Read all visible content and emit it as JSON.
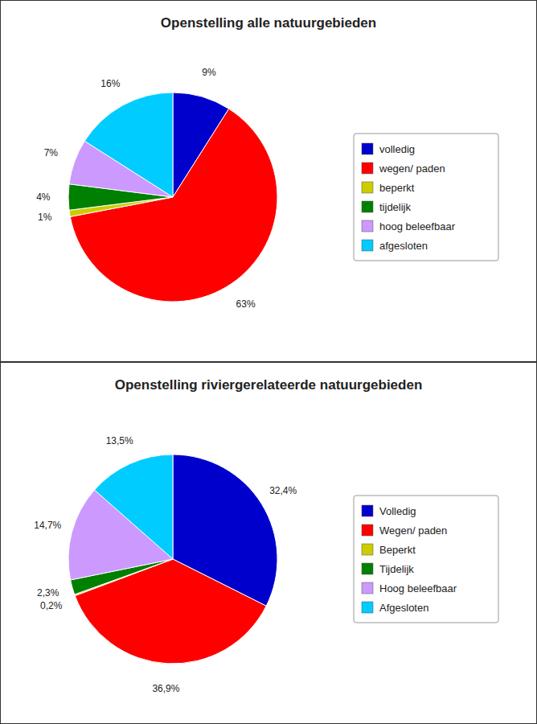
{
  "chart_data": [
    {
      "type": "pie",
      "title": "Openstelling alle natuurgebieden",
      "categories": [
        "volledig",
        "wegen/ paden",
        "beperkt",
        "tijdelijk",
        "hoog beleefbaar",
        "afgesloten"
      ],
      "values": [
        9,
        63,
        1,
        4,
        7,
        16
      ],
      "value_labels": [
        "9%",
        "63%",
        "1%",
        "4%",
        "7%",
        "16%"
      ],
      "colors": [
        "#0000CC",
        "#FF0000",
        "#CCCC00",
        "#008000",
        "#CC99FF",
        "#00CCFF"
      ],
      "data_labels": true,
      "legend": "right"
    },
    {
      "type": "pie",
      "title": "Openstelling riviergerelateerde natuurgebieden",
      "categories": [
        "Volledig",
        "Wegen/ paden",
        "Beperkt",
        "Tijdelijk",
        "Hoog beleefbaar",
        "Afgesloten"
      ],
      "values": [
        32.4,
        36.9,
        0.2,
        2.3,
        14.7,
        13.5
      ],
      "value_labels": [
        "32,4%",
        "36,9%",
        "0,2%",
        "2,3%",
        "14,7%",
        "13,5%"
      ],
      "colors": [
        "#0000CC",
        "#FF0000",
        "#CCCC00",
        "#008000",
        "#CC99FF",
        "#00CCFF"
      ],
      "data_labels": true,
      "legend": "right"
    }
  ]
}
